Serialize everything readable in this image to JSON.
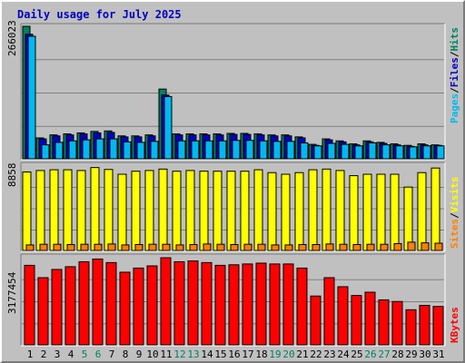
{
  "title": "Daily usage for July 2025",
  "colors": {
    "background": "#c0c0c0",
    "title": "#0000c0",
    "hits_fill": "#008060",
    "files_fill": "#0000c0",
    "pages_fill": "#00b8f0",
    "visits_fill": "#ffff00",
    "sites_fill": "#ff8000",
    "kbytes_fill": "#ff0000",
    "weekend_label": "#008060",
    "weekday_label": "#000000",
    "grid": "#808080"
  },
  "chart_data": [
    {
      "type": "bar",
      "name": "hits-files-pages",
      "categories": [
        "1",
        "2",
        "3",
        "4",
        "5",
        "6",
        "7",
        "8",
        "9",
        "10",
        "11",
        "12",
        "13",
        "14",
        "15",
        "16",
        "17",
        "18",
        "19",
        "20",
        "21",
        "22",
        "23",
        "24",
        "25",
        "26",
        "27",
        "28",
        "29",
        "30",
        "31"
      ],
      "weekend_days": [
        "5",
        "6",
        "12",
        "13",
        "19",
        "20",
        "26",
        "27"
      ],
      "y_tick_label": "266023",
      "ylim": [
        0,
        266023
      ],
      "ylabel_parts": [
        "Pages",
        "/",
        "Files",
        "/",
        "Hits"
      ],
      "series": [
        {
          "name": "Hits",
          "values": [
            266023,
            42000,
            48000,
            50000,
            52000,
            55000,
            56000,
            46000,
            46000,
            48000,
            140000,
            50000,
            50000,
            50000,
            50000,
            51000,
            51000,
            50000,
            48000,
            48000,
            44000,
            29000,
            40000,
            36000,
            30000,
            36000,
            33000,
            30000,
            27000,
            30000,
            28000
          ]
        },
        {
          "name": "Files",
          "values": [
            250000,
            40000,
            46000,
            48000,
            50000,
            52000,
            53000,
            44000,
            44000,
            46000,
            128000,
            48000,
            48000,
            48000,
            48000,
            49000,
            49000,
            48000,
            46000,
            46000,
            42000,
            27000,
            38000,
            34000,
            28000,
            34000,
            31000,
            28000,
            25000,
            28000,
            27000
          ]
        },
        {
          "name": "Pages",
          "values": [
            246000,
            28000,
            33000,
            36000,
            38000,
            40000,
            40000,
            34000,
            33000,
            35000,
            125000,
            36000,
            36000,
            36000,
            36000,
            37000,
            37000,
            36000,
            35000,
            35000,
            32000,
            26000,
            31000,
            29000,
            26000,
            32000,
            28000,
            26000,
            24000,
            26000,
            26000
          ]
        }
      ]
    },
    {
      "type": "bar",
      "name": "visits-sites",
      "categories": [
        "1",
        "2",
        "3",
        "4",
        "5",
        "6",
        "7",
        "8",
        "9",
        "10",
        "11",
        "12",
        "13",
        "14",
        "15",
        "16",
        "17",
        "18",
        "19",
        "20",
        "21",
        "22",
        "23",
        "24",
        "25",
        "26",
        "27",
        "28",
        "29",
        "30",
        "31"
      ],
      "y_tick_label": "8858",
      "ylim": [
        0,
        8858
      ],
      "ylabel_parts": [
        "Sites",
        "/",
        "Visits"
      ],
      "series": [
        {
          "name": "Visits",
          "values": [
            8240,
            8390,
            8470,
            8470,
            8390,
            8700,
            8500,
            8000,
            8320,
            8390,
            8540,
            8320,
            8390,
            8320,
            8320,
            8320,
            8320,
            8470,
            8170,
            8000,
            8170,
            8470,
            8540,
            8390,
            7850,
            8000,
            8000,
            8000,
            6650,
            8170,
            8650
          ]
        },
        {
          "name": "Sites",
          "values": [
            580,
            650,
            650,
            620,
            650,
            650,
            680,
            580,
            620,
            650,
            650,
            580,
            620,
            680,
            650,
            620,
            650,
            650,
            580,
            580,
            620,
            620,
            680,
            650,
            620,
            650,
            650,
            720,
            870,
            800,
            760
          ]
        }
      ]
    },
    {
      "type": "bar",
      "name": "kbytes",
      "categories": [
        "1",
        "2",
        "3",
        "4",
        "5",
        "6",
        "7",
        "8",
        "9",
        "10",
        "11",
        "12",
        "13",
        "14",
        "15",
        "16",
        "17",
        "18",
        "19",
        "20",
        "21",
        "22",
        "23",
        "24",
        "25",
        "26",
        "27",
        "28",
        "29",
        "30",
        "31"
      ],
      "y_tick_label": "3177454",
      "ylim": [
        0,
        3177454
      ],
      "ylabel_parts": [
        "KBytes"
      ],
      "series": [
        {
          "name": "KBytes",
          "values": [
            2900000,
            2450000,
            2750000,
            2850000,
            3030000,
            3130000,
            3000000,
            2650000,
            2800000,
            2880000,
            3177454,
            3030000,
            3060000,
            3000000,
            2900000,
            2920000,
            2950000,
            2980000,
            2950000,
            2950000,
            2800000,
            1780000,
            2450000,
            2120000,
            1800000,
            1920000,
            1640000,
            1580000,
            1280000,
            1440000,
            1400000
          ]
        }
      ]
    }
  ]
}
